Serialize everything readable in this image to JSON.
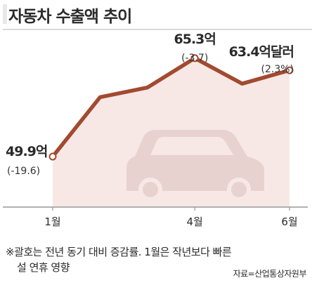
{
  "chart_data": {
    "type": "area",
    "title": "자동차 수출액 추이",
    "x": [
      1,
      2,
      3,
      4,
      5,
      6
    ],
    "xticks": [
      {
        "x": 1,
        "label": "1월"
      },
      {
        "x": 4,
        "label": "4월"
      },
      {
        "x": 6,
        "label": "6월"
      }
    ],
    "series": [
      {
        "values": [
          49.9,
          59.2,
          60.7,
          65.3,
          61.3,
          63.4
        ]
      }
    ],
    "ylim": [
      42,
      70
    ],
    "annotations": [
      {
        "x": 1,
        "value_label": "49.9억",
        "change_label": "(-19.6)"
      },
      {
        "x": 4,
        "value_label": "65.3억",
        "change_label": "(-3.7)"
      },
      {
        "x": 6,
        "value_label": "63.4억달러",
        "change_label": "(2.3%)"
      }
    ],
    "grid": false,
    "legend": "none",
    "colors": {
      "line": "#a24a30",
      "fill": "#f7e8e6",
      "car": "#e8d2d0",
      "axis": "#999999"
    }
  },
  "footnote": {
    "line1": "※괄호는 전년 동기 대비 증감률. 1월은 작년보다 빠른",
    "line2": "설 연휴 영향"
  },
  "source": "자료=산업통상자원부",
  "icons": [
    "car-icon"
  ]
}
